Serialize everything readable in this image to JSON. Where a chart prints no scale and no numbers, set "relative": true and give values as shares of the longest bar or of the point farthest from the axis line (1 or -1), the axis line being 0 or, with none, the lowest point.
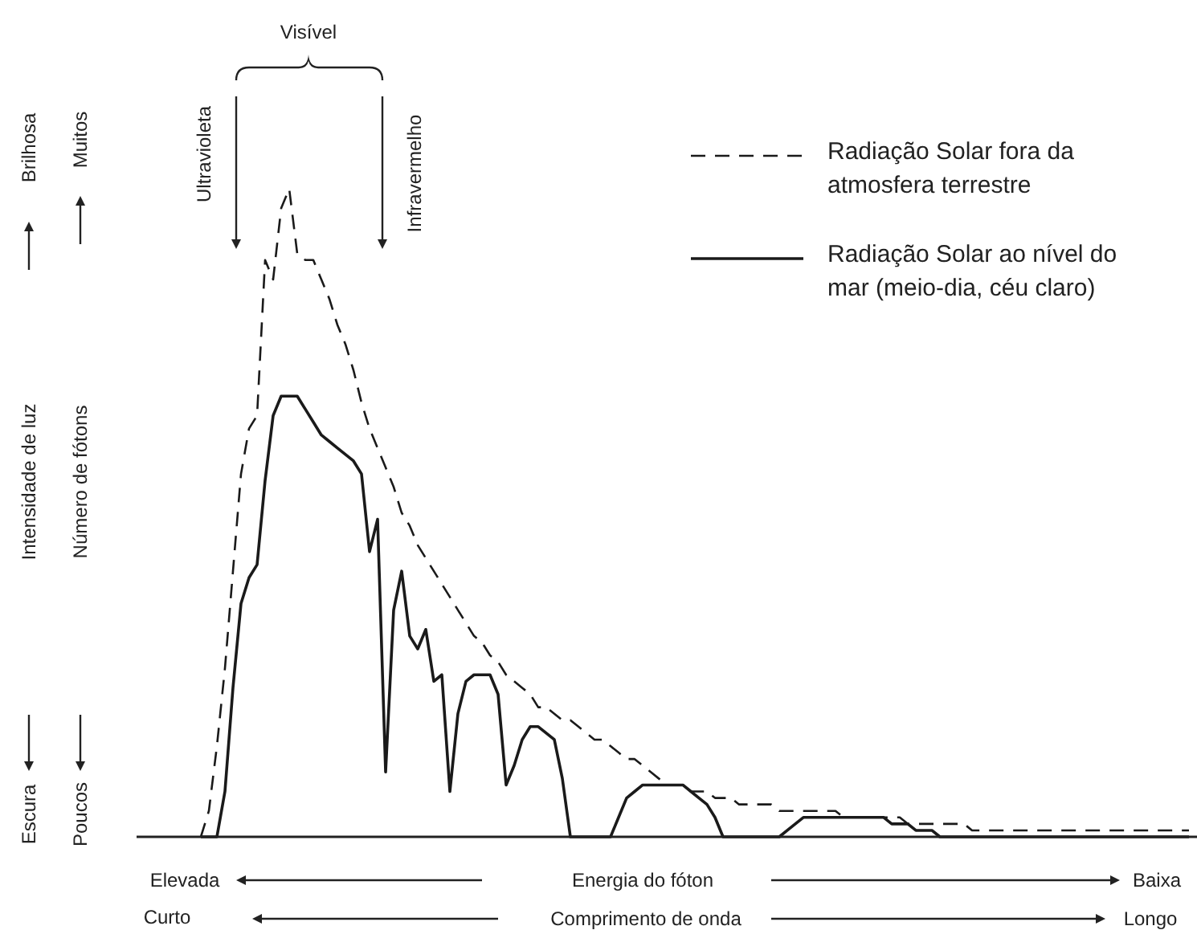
{
  "chart_data": {
    "type": "line",
    "relative": true,
    "legend": "top right",
    "xlabel": "Energia do fóton",
    "annotations": [
      "Intensidade de luz",
      "Visível",
      "Ultravioleta",
      "Infravermelho",
      "Brilhosa",
      "Escura",
      "Muitos",
      "Número de fótons",
      "Poucos",
      "Elevada",
      "Baixa",
      "Curto",
      "Comprimento de onda",
      "Longo"
    ],
    "categories": [
      null,
      null,
      null,
      null,
      null,
      null,
      null,
      null,
      null,
      null,
      null,
      null,
      null,
      null,
      null,
      null,
      null,
      null,
      null,
      null,
      null,
      null,
      null,
      null,
      null,
      null,
      null,
      null,
      null,
      null,
      null,
      null,
      null,
      null,
      null,
      null,
      null,
      null,
      null,
      null,
      null,
      null,
      null,
      null,
      null,
      null,
      null,
      null,
      null,
      null,
      null,
      null,
      null,
      null,
      null,
      null,
      null,
      null,
      null,
      null,
      null,
      null,
      null,
      null,
      null,
      null,
      null,
      null,
      null,
      null,
      null,
      null,
      null,
      null,
      null,
      null,
      null,
      null,
      null,
      null,
      null,
      null,
      null,
      null,
      null,
      null,
      null,
      null,
      null,
      null,
      null,
      null,
      null,
      null,
      null,
      null,
      null,
      null,
      null,
      null,
      null,
      null,
      null,
      null,
      null,
      null,
      null,
      null,
      null,
      null,
      null,
      null,
      null,
      null,
      null,
      null,
      null,
      null,
      null,
      null,
      null,
      null,
      null,
      null
    ],
    "series": [
      {
        "name": "Radiação Solar fora da atmosfera terrestre",
        "color": "#1a1a1a",
        "line_style": "dashed",
        "values": [
          0,
          0.04,
          0.14,
          0.26,
          0.41,
          0.56,
          0.63,
          0.65,
          0.89,
          0.86,
          0.97,
          1,
          0.9,
          0.89,
          0.89,
          0.86,
          0.83,
          0.79,
          0.76,
          0.72,
          0.67,
          0.63,
          0.6,
          0.57,
          0.54,
          0.5,
          0.48,
          0.45,
          0.43,
          0.41,
          0.39,
          0.37,
          0.35,
          0.33,
          0.31,
          0.3,
          0.28,
          0.27,
          0.25,
          0.24,
          0.23,
          0.22,
          0.2,
          0.2,
          0.19,
          0.18,
          0.18,
          0.17,
          0.16,
          0.15,
          0.15,
          0.14,
          0.13,
          0.12,
          0.12,
          0.11,
          0.1,
          0.09,
          0.08,
          0.08,
          0.08,
          0.07,
          0.07,
          0.07,
          0.06,
          0.06,
          0.06,
          0.05,
          0.05,
          0.05,
          0.05,
          0.05,
          0.04,
          0.04,
          0.04,
          0.04,
          0.04,
          0.04,
          0.04,
          0.04,
          0.03,
          0.03,
          0.03,
          0.03,
          0.03,
          0.03,
          0.03,
          0.03,
          0.02,
          0.02,
          0.02,
          0.02,
          0.02,
          0.02,
          0.02,
          0.02,
          0.01,
          0.01,
          0.01,
          0.01,
          0.01,
          0.01,
          0.01,
          0.01,
          0.01,
          0.01,
          0.01,
          0.01,
          0.01,
          0.01,
          0.01,
          0.01,
          0.01,
          0.01,
          0.01,
          0.01,
          0.01,
          0.01,
          0.01,
          0.01,
          0.01,
          0.01,
          0.01,
          0.01
        ]
      },
      {
        "name": "Radiação Solar ao nível do mar (meio-dia, céu claro)",
        "color": "#1a1a1a",
        "line_style": "solid",
        "values": [
          0,
          0,
          0,
          0.07,
          0.23,
          0.36,
          0.4,
          0.42,
          0.55,
          0.65,
          0.68,
          0.68,
          0.68,
          0.66,
          0.64,
          0.62,
          0.61,
          0.6,
          0.59,
          0.58,
          0.56,
          0.44,
          0.49,
          0.1,
          0.35,
          0.41,
          0.31,
          0.29,
          0.32,
          0.24,
          0.25,
          0.07,
          0.19,
          0.24,
          0.25,
          0.25,
          0.25,
          0.22,
          0.08,
          0.11,
          0.15,
          0.17,
          0.17,
          0.16,
          0.15,
          0.09,
          0,
          0,
          0,
          0,
          0,
          0,
          0.03,
          0.06,
          0.07,
          0.08,
          0.08,
          0.08,
          0.08,
          0.08,
          0.08,
          0.07,
          0.06,
          0.05,
          0.03,
          0,
          0,
          0,
          0,
          0,
          0,
          0,
          0,
          0.01,
          0.02,
          0.03,
          0.03,
          0.03,
          0.03,
          0.03,
          0.03,
          0.03,
          0.03,
          0.03,
          0.03,
          0.03,
          0.02,
          0.02,
          0.02,
          0.01,
          0.01,
          0.01,
          0,
          0,
          0,
          0,
          0,
          0,
          0,
          0,
          0,
          0,
          0,
          0,
          0,
          0,
          0,
          0,
          0,
          0,
          0,
          0,
          0,
          0,
          0,
          0,
          0,
          0,
          0,
          0,
          0,
          0,
          0,
          0
        ]
      }
    ]
  }
}
